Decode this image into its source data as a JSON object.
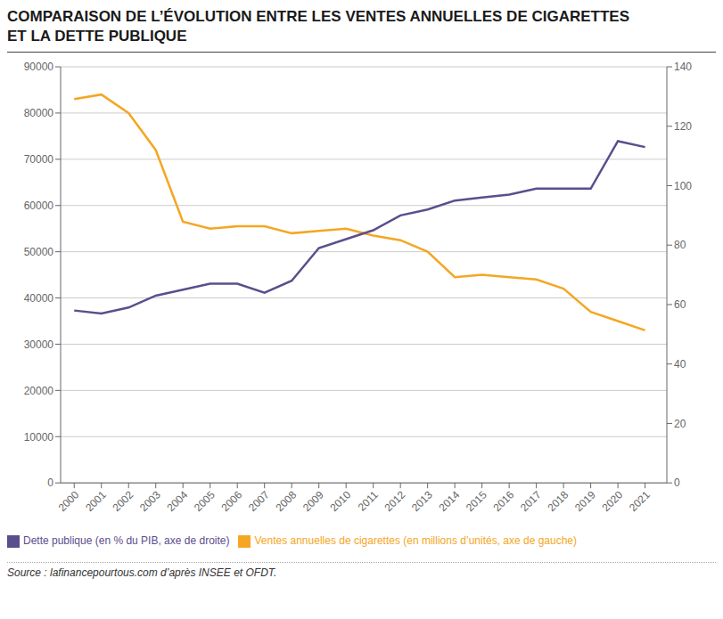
{
  "chart_data": {
    "type": "line",
    "title": "COMPARAISON DE L’ÉVOLUTION ENTRE LES VENTES ANNUELLES DE CIGARETTES\nET LA DETTE PUBLIQUE",
    "x": [
      2000,
      2001,
      2002,
      2003,
      2004,
      2005,
      2006,
      2007,
      2008,
      2009,
      2010,
      2011,
      2012,
      2013,
      2014,
      2015,
      2016,
      2017,
      2018,
      2019,
      2020,
      2021
    ],
    "xlim": [
      1999.5,
      2021.8
    ],
    "xticks": [
      2000,
      2001,
      2002,
      2003,
      2004,
      2005,
      2006,
      2007,
      2008,
      2009,
      2010,
      2011,
      2012,
      2013,
      2014,
      2015,
      2016,
      2017,
      2018,
      2019,
      2020,
      2021
    ],
    "ylim": [
      0,
      90000
    ],
    "yticks": [
      0,
      10000,
      20000,
      30000,
      40000,
      50000,
      60000,
      70000,
      80000,
      90000
    ],
    "y2lim": [
      0,
      140
    ],
    "y2ticks": [
      0,
      20,
      40,
      60,
      80,
      100,
      120,
      140
    ],
    "series": [
      {
        "name": "Ventes annuelles de cigarettes (en millions d’unités, axe de gauche)",
        "color": "#f5a623",
        "axis": "y",
        "values": [
          83000,
          84000,
          80000,
          72000,
          56500,
          55000,
          55500,
          55500,
          54000,
          54500,
          55000,
          53500,
          52500,
          50000,
          44500,
          45000,
          44500,
          44000,
          42000,
          37000,
          35000,
          33000
        ]
      },
      {
        "name": "Dette publique (en % du PIB, axe de droite)",
        "color": "#5b4e8c",
        "axis": "y2",
        "values": [
          58,
          57,
          59,
          63,
          65,
          67,
          67,
          64,
          68,
          79,
          82,
          85,
          90,
          92,
          95,
          96,
          97,
          99,
          99,
          99,
          115,
          113
        ]
      }
    ],
    "grid": true,
    "legend": "lower left",
    "annotations": [
      "Source : lafinancepourtous.com d’après INSEE et OFDT."
    ]
  }
}
